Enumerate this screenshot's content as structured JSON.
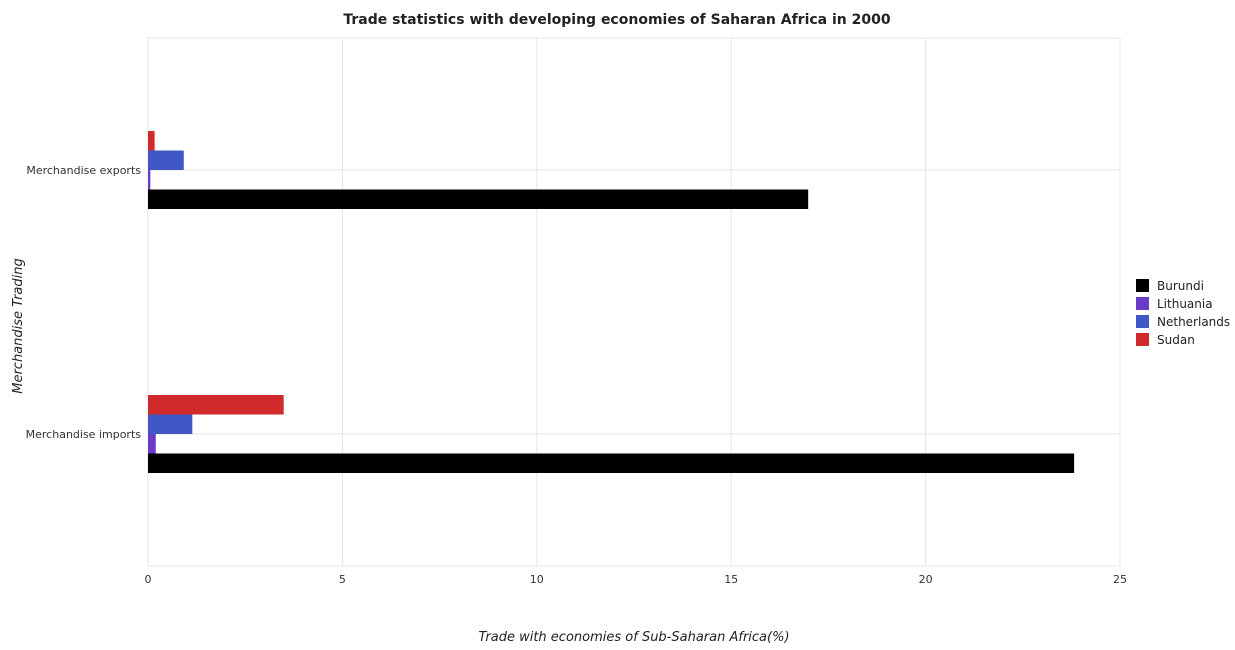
{
  "chart_data": {
    "type": "bar",
    "orientation": "horizontal",
    "title": "Trade statistics with developing economies of Saharan Africa in 2000",
    "xlabel": "Trade with economies of Sub-Saharan Africa(%)",
    "ylabel": "Merchandise Trading",
    "xlim": [
      0,
      25
    ],
    "xticks": [
      "0",
      "5",
      "10",
      "15",
      "20",
      "25"
    ],
    "categories": [
      "Merchandise exports",
      "Merchandise imports"
    ],
    "grid": true,
    "legend_position": "right",
    "series": [
      {
        "name": "Burundi",
        "color": "#000000",
        "values": [
          16.98,
          23.82
        ]
      },
      {
        "name": "Lithuania",
        "color": "#6a3ac8",
        "values": [
          0.06,
          0.2
        ]
      },
      {
        "name": "Netherlands",
        "color": "#3f58c6",
        "values": [
          0.92,
          1.14
        ]
      },
      {
        "name": "Sudan",
        "color": "#d02a2a",
        "values": [
          0.17,
          3.49
        ]
      }
    ]
  }
}
